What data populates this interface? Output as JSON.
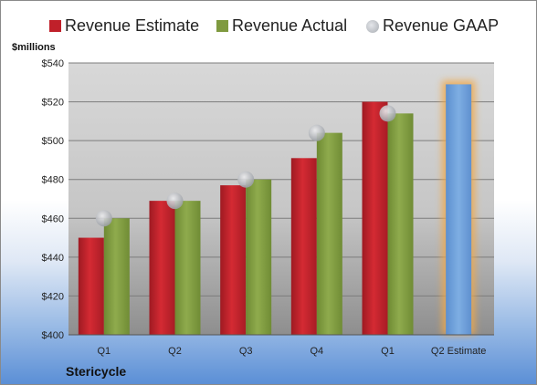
{
  "chart_data": {
    "type": "bar",
    "ylabel": "$millions",
    "ylim": [
      400,
      540
    ],
    "yticks": [
      400,
      420,
      440,
      460,
      480,
      500,
      520,
      540
    ],
    "ytick_labels": [
      "$400",
      "$420",
      "$440",
      "$460",
      "$480",
      "$500",
      "$520",
      "$540"
    ],
    "categories": [
      "Q1",
      "Q2",
      "Q3",
      "Q4",
      "Q1",
      "Q2 Estimate"
    ],
    "series": [
      {
        "name": "Revenue Estimate",
        "type": "bar",
        "color": "#c0202a",
        "values": [
          450,
          469,
          477,
          491,
          520,
          529
        ]
      },
      {
        "name": "Revenue Actual",
        "type": "bar",
        "color": "#7f9a3f",
        "values": [
          460,
          469,
          480,
          504,
          514,
          null
        ]
      },
      {
        "name": "Revenue GAAP",
        "type": "scatter",
        "color": "#b4b7bc",
        "values": [
          460,
          469,
          480,
          504,
          514,
          null
        ]
      }
    ],
    "highlight": {
      "category_index": 5,
      "color": "#6d9fd8",
      "glow": "#f0a84a"
    },
    "grid": true,
    "legend_position": "top"
  },
  "footer": {
    "company": "Stericycle"
  }
}
